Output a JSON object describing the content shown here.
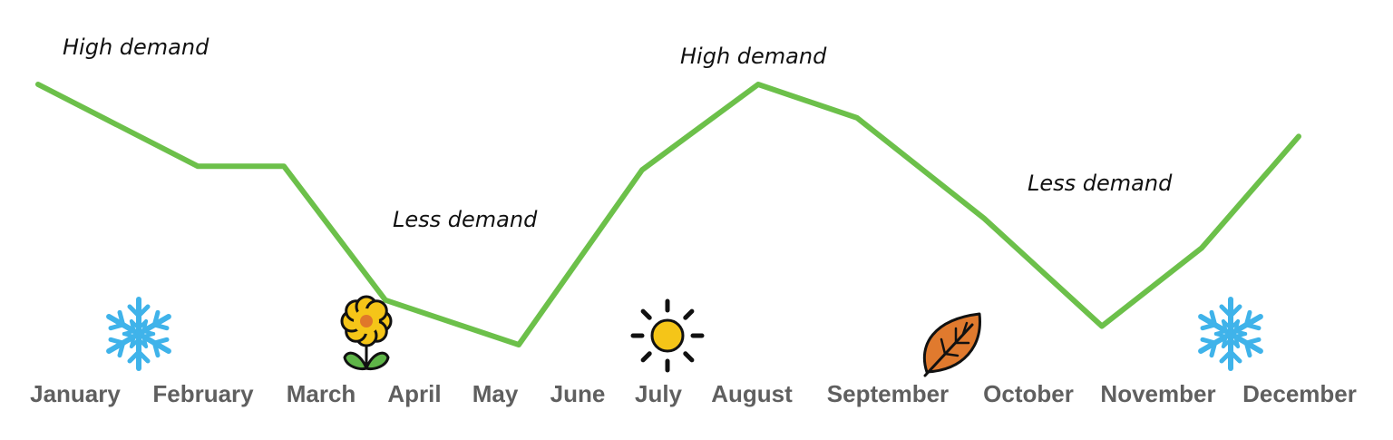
{
  "chart_data": {
    "type": "line",
    "categories": [
      "January",
      "February",
      "March",
      "April",
      "May",
      "June",
      "July",
      "August",
      "September",
      "October",
      "November",
      "December"
    ],
    "series": [
      {
        "values": [
          1.0,
          0.78,
          0.78,
          0.42,
          0.3,
          0.77,
          1.0,
          0.91,
          0.64,
          0.35,
          0.56,
          0.86
        ]
      }
    ],
    "annotations": [
      {
        "text": "High demand",
        "x": "January"
      },
      {
        "text": "Less demand",
        "x": "April"
      },
      {
        "text": "High demand",
        "x": "July"
      },
      {
        "text": "Less demand",
        "x": "October"
      }
    ],
    "season_icons": [
      {
        "icon": "snowflake-icon",
        "x": "January",
        "color": "#3fb3ea"
      },
      {
        "icon": "flower-icon",
        "x": "March",
        "color": "#f5c518"
      },
      {
        "icon": "sun-icon",
        "x": "July",
        "color": "#f5c518"
      },
      {
        "icon": "leaf-icon",
        "x": "September",
        "color": "#e07a2e"
      },
      {
        "icon": "snowflake-icon",
        "x": "December",
        "color": "#3fb3ea"
      }
    ],
    "line_color": "#6cc04a",
    "grid": false,
    "legend": "none"
  }
}
